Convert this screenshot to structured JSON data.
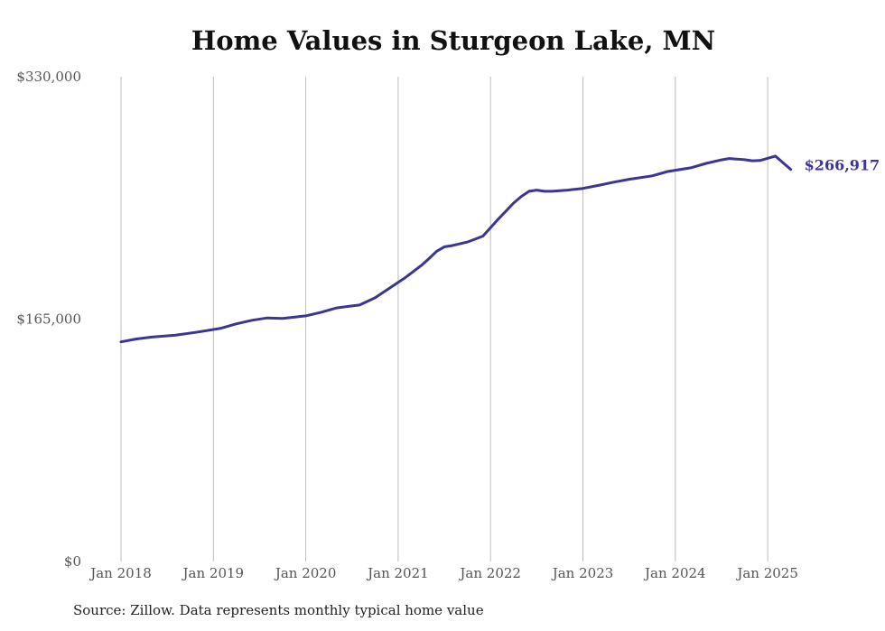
{
  "chart_data": {
    "type": "line",
    "title": "Home Values in Sturgeon Lake, MN",
    "xlabel": "",
    "ylabel": "",
    "ylim": [
      0,
      330000
    ],
    "y_ticks": [
      "$0",
      "$165,000",
      "$330,000"
    ],
    "y_tick_values": [
      0,
      165000,
      330000
    ],
    "x_ticks": [
      "Jan 2018",
      "Jan 2019",
      "Jan 2020",
      "Jan 2021",
      "Jan 2022",
      "Jan 2023",
      "Jan 2024",
      "Jan 2025"
    ],
    "x_tick_values": [
      2018.0,
      2019.0,
      2020.0,
      2021.0,
      2022.0,
      2023.0,
      2024.0,
      2025.0
    ],
    "xlim": [
      2018.0,
      2025.25
    ],
    "grid": "vertical",
    "line_color": "#3b3596",
    "series": [
      {
        "x": [
          2018.0,
          2018.167,
          2018.333,
          2018.583,
          2018.833,
          2019.083,
          2019.25,
          2019.417,
          2019.583,
          2019.75,
          2020.0,
          2020.167,
          2020.333,
          2020.5,
          2020.583,
          2020.75,
          2020.917,
          2021.083,
          2021.25,
          2021.333,
          2021.417,
          2021.5,
          2021.583,
          2021.75,
          2021.917,
          2022.083,
          2022.25,
          2022.333,
          2022.417,
          2022.5,
          2022.583,
          2022.667,
          2022.833,
          2023.0,
          2023.167,
          2023.333,
          2023.5,
          2023.75,
          2023.917,
          2024.167,
          2024.333,
          2024.5,
          2024.583,
          2024.75,
          2024.833,
          2024.917,
          2025.083,
          2025.25
        ],
        "y": [
          149500,
          151500,
          152800,
          154000,
          156200,
          158800,
          161800,
          164200,
          165800,
          165400,
          167200,
          169700,
          172600,
          174000,
          174600,
          179500,
          186500,
          193500,
          201500,
          206200,
          211200,
          214200,
          215000,
          217500,
          221500,
          233000,
          244000,
          248500,
          252000,
          252800,
          252000,
          252000,
          252800,
          254000,
          256000,
          258200,
          260200,
          262500,
          265500,
          268000,
          271000,
          273400,
          274300,
          273500,
          272800,
          273000,
          276000,
          266917
        ]
      }
    ],
    "end_label": "$266,917",
    "source_note": "Source: Zillow. Data represents monthly typical home value"
  }
}
